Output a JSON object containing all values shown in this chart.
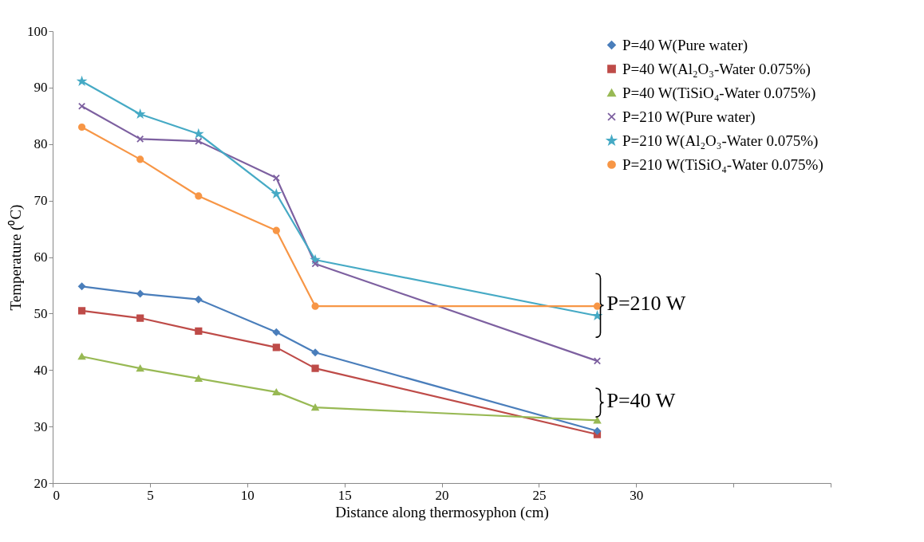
{
  "chart_data": {
    "type": "line",
    "xlabel": "Distance along thermosyphon (cm)",
    "ylabel": "Temperature (⁰C)",
    "xlim": [
      0,
      40
    ],
    "xticks": [
      0,
      5,
      10,
      15,
      20,
      25,
      30,
      {
        "value": 35,
        "label": null
      },
      {
        "value": 40,
        "label": null
      }
    ],
    "ylim": [
      20,
      100
    ],
    "yticks": [
      20,
      30,
      40,
      50,
      60,
      70,
      80,
      90,
      100
    ],
    "x": [
      1.5,
      4.5,
      7.5,
      11.5,
      13.5,
      28
    ],
    "series": [
      {
        "name": "P=40 W(Pure water)",
        "color": "#4a7ebb",
        "marker": "diamond",
        "values": [
          54.8,
          53.5,
          52.5,
          46.7,
          43.1,
          29.2
        ]
      },
      {
        "name": "P=40 W(Al₂O₃-Water 0.075%)",
        "color": "#be4b48",
        "marker": "square",
        "values": [
          50.5,
          49.2,
          46.9,
          44.0,
          40.3,
          28.6
        ]
      },
      {
        "name": "P=40 W(TiSiO₄-Water 0.075%)",
        "color": "#98b954",
        "marker": "triangle",
        "values": [
          42.4,
          40.3,
          38.5,
          36.1,
          33.4,
          31.1
        ]
      },
      {
        "name": "P=210 W(Pure water)",
        "color": "#7d60a0",
        "marker": "cross",
        "values": [
          86.7,
          80.9,
          80.5,
          74.0,
          58.8,
          41.6
        ]
      },
      {
        "name": "P=210 W(Al₂O₃-Water 0.075%)",
        "color": "#46aac5",
        "marker": "star",
        "values": [
          91.1,
          85.3,
          81.8,
          71.2,
          59.5,
          49.6
        ]
      },
      {
        "name": "P=210 W(TiSiO₄-Water 0.075%)",
        "color": "#f79646",
        "marker": "circle",
        "values": [
          83.0,
          77.3,
          70.8,
          64.7,
          51.3,
          51.3
        ]
      }
    ],
    "annotations": [
      "P=210 W",
      "P=40 W"
    ],
    "legend": "top right",
    "grid": false
  }
}
